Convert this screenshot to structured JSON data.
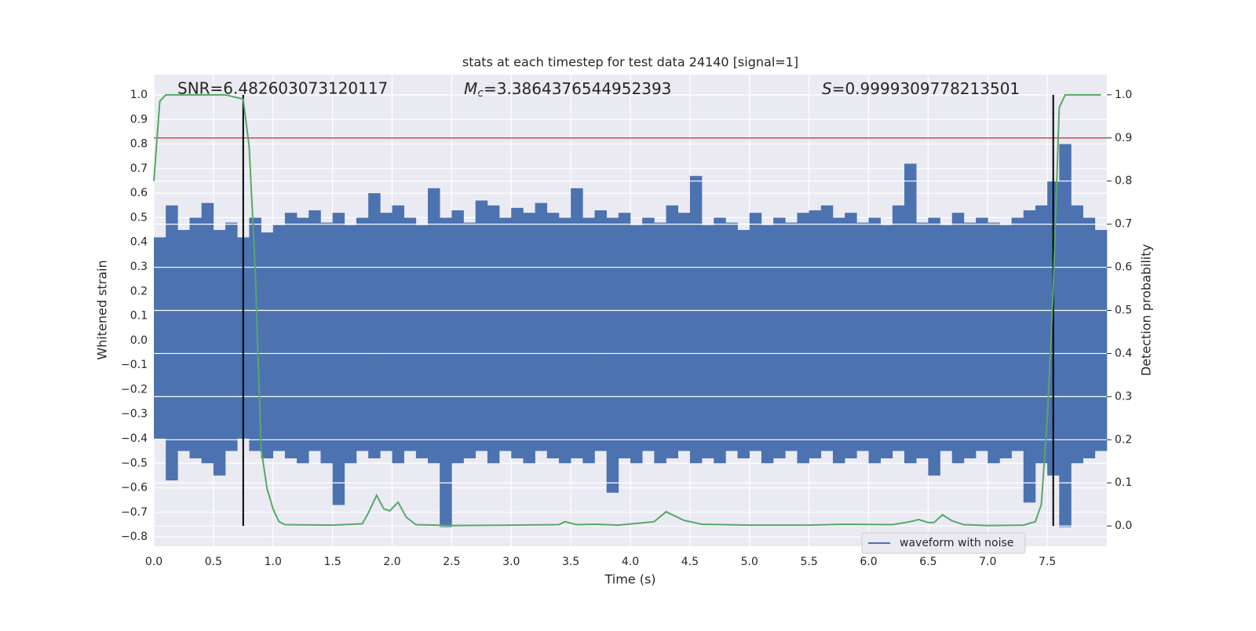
{
  "chart_data": {
    "type": "line",
    "title": "stats at each timestep for test data 24140 [signal=1]",
    "xlabel": "Time (s)",
    "ylabel": "Whitened strain",
    "y2label": "Detection probability",
    "annotations": [
      {
        "text": "SNR=6.482603073120117"
      },
      {
        "symbol": "M",
        "subscript": "c",
        "text": "=3.3864376544952393"
      },
      {
        "symbol": "S",
        "text": "=0.9999309778213501"
      }
    ],
    "xlim": [
      0,
      8
    ],
    "ylim": [
      -0.838,
      1.083
    ],
    "y2lim": [
      -0.047,
      1.047
    ],
    "xticks": [
      {
        "value": 0,
        "label": "0.0"
      },
      0.5,
      {
        "value": 1,
        "label": "1.0"
      },
      1.5,
      {
        "value": 2,
        "label": "2.0"
      },
      2.5,
      {
        "value": 3,
        "label": "3.0"
      },
      3.5,
      {
        "value": 4,
        "label": "4.0"
      },
      4.5,
      {
        "value": 5,
        "label": "5.0"
      },
      5.5,
      {
        "value": 6,
        "label": "6.0"
      },
      6.5,
      {
        "value": 7,
        "label": "7.0"
      },
      7.5
    ],
    "yticks": [
      {
        "value": -0.8,
        "label": "−0.8"
      },
      {
        "value": -0.7,
        "label": "−0.7"
      },
      {
        "value": -0.6,
        "label": "−0.6"
      },
      {
        "value": -0.5,
        "label": "−0.5"
      },
      {
        "value": -0.4,
        "label": "−0.4"
      },
      {
        "value": -0.3,
        "label": "−0.3"
      },
      {
        "value": -0.2,
        "label": "−0.2"
      },
      {
        "value": -0.1,
        "label": "−0.1"
      },
      {
        "value": 0,
        "label": "0.0"
      },
      0.1,
      0.2,
      0.3,
      0.4,
      0.5,
      0.6,
      0.7,
      0.8,
      0.9,
      {
        "value": 1,
        "label": "1.0"
      }
    ],
    "y2ticks": [
      {
        "value": 0,
        "label": "0.0"
      },
      0.1,
      0.2,
      0.3,
      0.4,
      0.5,
      0.6,
      0.7,
      0.8,
      0.9,
      {
        "value": 1,
        "label": "1.0"
      }
    ],
    "grid": true,
    "legend": "lower right",
    "threshold": 0.9,
    "threshold_color": "#c44e52",
    "vlines": [
      0.75,
      7.55
    ],
    "vline_color": "#000000",
    "series": [
      {
        "name": "waveform with noise",
        "color": "#4c72b0",
        "x": [
          0.05,
          0.15,
          0.25,
          0.35,
          0.45,
          0.55,
          0.65,
          0.75,
          0.85,
          0.95,
          1.05,
          1.15,
          1.25,
          1.35,
          1.45,
          1.55,
          1.65,
          1.75,
          1.85,
          1.95,
          2.05,
          2.15,
          2.25,
          2.35,
          2.45,
          2.55,
          2.65,
          2.75,
          2.85,
          2.95,
          3.05,
          3.15,
          3.25,
          3.35,
          3.45,
          3.55,
          3.65,
          3.75,
          3.85,
          3.95,
          4.05,
          4.15,
          4.25,
          4.35,
          4.45,
          4.55,
          4.65,
          4.75,
          4.85,
          4.95,
          5.05,
          5.15,
          5.25,
          5.35,
          5.45,
          5.55,
          5.65,
          5.75,
          5.85,
          5.95,
          6.05,
          6.15,
          6.25,
          6.35,
          6.45,
          6.55,
          6.65,
          6.75,
          6.85,
          6.95,
          7.05,
          7.15,
          7.25,
          7.35,
          7.45,
          7.55,
          7.65,
          7.75,
          7.85,
          7.95
        ],
        "upper": [
          0.42,
          0.55,
          0.45,
          0.5,
          0.56,
          0.45,
          0.48,
          0.42,
          0.5,
          0.44,
          0.47,
          0.52,
          0.5,
          0.53,
          0.48,
          0.52,
          0.47,
          0.5,
          0.6,
          0.52,
          0.55,
          0.5,
          0.47,
          0.62,
          0.5,
          0.53,
          0.48,
          0.57,
          0.55,
          0.5,
          0.54,
          0.52,
          0.56,
          0.52,
          0.5,
          0.62,
          0.5,
          0.53,
          0.5,
          0.52,
          0.47,
          0.5,
          0.48,
          0.55,
          0.52,
          0.67,
          0.47,
          0.5,
          0.48,
          0.45,
          0.52,
          0.47,
          0.5,
          0.48,
          0.52,
          0.53,
          0.55,
          0.5,
          0.52,
          0.48,
          0.5,
          0.47,
          0.55,
          0.72,
          0.48,
          0.5,
          0.47,
          0.52,
          0.48,
          0.5,
          0.48,
          0.47,
          0.5,
          0.53,
          0.55,
          0.65,
          0.8,
          0.55,
          0.5,
          0.45
        ],
        "lower": [
          -0.4,
          -0.57,
          -0.45,
          -0.48,
          -0.5,
          -0.55,
          -0.45,
          -0.4,
          -0.45,
          -0.48,
          -0.45,
          -0.48,
          -0.5,
          -0.45,
          -0.5,
          -0.67,
          -0.5,
          -0.45,
          -0.48,
          -0.45,
          -0.5,
          -0.45,
          -0.48,
          -0.5,
          -0.76,
          -0.5,
          -0.48,
          -0.45,
          -0.5,
          -0.45,
          -0.48,
          -0.5,
          -0.45,
          -0.48,
          -0.5,
          -0.48,
          -0.5,
          -0.45,
          -0.62,
          -0.48,
          -0.5,
          -0.45,
          -0.5,
          -0.48,
          -0.45,
          -0.5,
          -0.48,
          -0.5,
          -0.45,
          -0.48,
          -0.45,
          -0.5,
          -0.48,
          -0.45,
          -0.5,
          -0.48,
          -0.45,
          -0.5,
          -0.48,
          -0.45,
          -0.5,
          -0.48,
          -0.45,
          -0.5,
          -0.48,
          -0.55,
          -0.45,
          -0.5,
          -0.48,
          -0.45,
          -0.5,
          -0.48,
          -0.45,
          -0.66,
          -0.5,
          -0.55,
          -0.76,
          -0.5,
          -0.48,
          -0.45
        ]
      },
      {
        "color": "#55a868",
        "axis": "y2",
        "x": [
          0,
          0.05,
          0.1,
          0.6,
          0.75,
          0.8,
          0.85,
          0.9,
          0.95,
          1.0,
          1.05,
          1.1,
          1.5,
          1.75,
          1.8,
          1.87,
          1.93,
          1.98,
          2.05,
          2.12,
          2.2,
          2.5,
          3.0,
          3.4,
          3.45,
          3.55,
          3.7,
          3.9,
          4.2,
          4.3,
          4.45,
          4.6,
          5.0,
          5.5,
          5.8,
          6.2,
          6.35,
          6.42,
          6.5,
          6.55,
          6.62,
          6.7,
          6.8,
          7.0,
          7.3,
          7.4,
          7.45,
          7.5,
          7.55,
          7.6,
          7.65,
          7.95
        ],
        "values": [
          0.8,
          0.985,
          1.0,
          1.0,
          0.99,
          0.88,
          0.6,
          0.18,
          0.087,
          0.04,
          0.01,
          0.003,
          0.002,
          0.005,
          0.03,
          0.071,
          0.04,
          0.035,
          0.055,
          0.02,
          0.003,
          0.001,
          0.002,
          0.003,
          0.01,
          0.003,
          0.004,
          0.002,
          0.01,
          0.033,
          0.013,
          0.004,
          0.002,
          0.002,
          0.004,
          0.003,
          0.01,
          0.015,
          0.008,
          0.008,
          0.026,
          0.012,
          0.003,
          0.001,
          0.002,
          0.01,
          0.05,
          0.25,
          0.55,
          0.97,
          1.0,
          1.0
        ]
      }
    ]
  }
}
